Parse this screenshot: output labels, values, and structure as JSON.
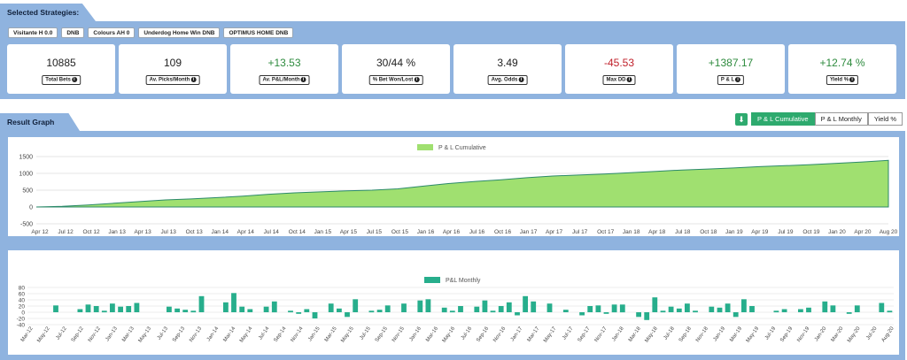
{
  "header": {
    "selected_title": "Selected Strategies:",
    "result_title": "Result Graph"
  },
  "strategies": [
    "Visitante H 0.0",
    "DNB",
    "Colours AH 0",
    "Underdog Home Win DNB",
    "OPTIMUS HOME DNB"
  ],
  "stats": [
    {
      "value": "10885",
      "label": "Total Bets",
      "tone": "neutral"
    },
    {
      "value": "109",
      "label": "Av. Picks/Month",
      "tone": "neutral"
    },
    {
      "value": "+13.53",
      "label": "Av. P&L/Month",
      "tone": "pos"
    },
    {
      "value": "30/44 %",
      "label": "% Bet Won/Lost",
      "tone": "neutral"
    },
    {
      "value": "3.49",
      "label": "Avg. Odds",
      "tone": "neutral"
    },
    {
      "value": "-45.53",
      "label": "Max DD",
      "tone": "neg"
    },
    {
      "value": "+1387.17",
      "label": "P & L",
      "tone": "pos"
    },
    {
      "value": "+12.74 %",
      "label": "Yield %",
      "tone": "pos"
    }
  ],
  "toolbar": {
    "download_icon": "download-icon",
    "tabs": [
      {
        "label": "P & L Cumulative",
        "active": true
      },
      {
        "label": "P & L Monthly",
        "active": false
      },
      {
        "label": "Yield %",
        "active": false
      }
    ]
  },
  "colors": {
    "accent": "#2eaa6e",
    "panel": "#8fb3df",
    "area_fill": "#a0e070",
    "bar": "#27ae8c"
  },
  "chart_data": [
    {
      "type": "area",
      "legend": "P & L Cumulative",
      "legend_position": "top-center",
      "grid": true,
      "ylim": [
        -500,
        1500
      ],
      "yticks": [
        "1500",
        "1000",
        "500",
        "0",
        "-500"
      ],
      "xtick_labels": [
        "Apr 12",
        "Jul 12",
        "Oct 12",
        "Jan 13",
        "Apr 13",
        "Jul 13",
        "Oct 13",
        "Jan 14",
        "Apr 14",
        "Jul 14",
        "Oct 14",
        "Jan 15",
        "Apr 15",
        "Jul 15",
        "Oct 15",
        "Jan 16",
        "Apr 16",
        "Jul 16",
        "Oct 16",
        "Jan 17",
        "Apr 17",
        "Jul 17",
        "Oct 17",
        "Jan 18",
        "Apr 18",
        "Jul 18",
        "Oct 18",
        "Jan 19",
        "Apr 19",
        "Jul 19",
        "Oct 19",
        "Jan 20",
        "Apr 20",
        "Aug 20"
      ],
      "values": [
        0,
        20,
        60,
        110,
        160,
        210,
        240,
        280,
        320,
        380,
        420,
        450,
        480,
        500,
        540,
        620,
        700,
        760,
        810,
        870,
        920,
        950,
        980,
        1020,
        1060,
        1100,
        1130,
        1160,
        1200,
        1230,
        1260,
        1300,
        1340,
        1387
      ]
    },
    {
      "type": "bar",
      "legend": "P&L Monthly",
      "legend_position": "top-center",
      "grid": true,
      "ylim": [
        -40,
        80
      ],
      "yticks": [
        "80",
        "60",
        "40",
        "20",
        "0",
        "-20",
        "-40"
      ],
      "xtick_labels": [
        "Mar-12",
        "May-12",
        "Jul-12",
        "Sep-12",
        "Nov-12",
        "Jan-13",
        "Mar-13",
        "May-13",
        "Jul-13",
        "Sep-13",
        "Nov-13",
        "Jan-14",
        "Mar-14",
        "May-14",
        "Jul-14",
        "Sep-14",
        "Nov-14",
        "Jan-15",
        "Mar-15",
        "May-15",
        "Jul-15",
        "Sep-15",
        "Nov-15",
        "Jan-16",
        "Mar-16",
        "May-16",
        "Jul-16",
        "Sep-16",
        "Nov-16",
        "Jan-17",
        "Mar-17",
        "May-17",
        "Jul-17",
        "Sep-17",
        "Nov-17",
        "Jan-18",
        "Mar-18",
        "May-18",
        "Jul-18",
        "Sep-18",
        "Nov-18",
        "Jan-19",
        "Mar-19",
        "May-19",
        "Jul-19",
        "Sep-19",
        "Nov-19",
        "Jan-20",
        "Mar-20",
        "May-20",
        "Jul-20",
        "Aug-20"
      ],
      "values": [
        0,
        0,
        0,
        22,
        0,
        0,
        10,
        25,
        20,
        5,
        28,
        18,
        20,
        30,
        0,
        0,
        0,
        18,
        12,
        8,
        5,
        52,
        0,
        0,
        32,
        62,
        18,
        10,
        0,
        18,
        35,
        0,
        5,
        -5,
        10,
        -20,
        0,
        28,
        12,
        -15,
        42,
        0,
        5,
        8,
        22,
        0,
        28,
        0,
        38,
        42,
        0,
        15,
        5,
        20,
        0,
        18,
        38,
        5,
        20,
        32,
        -10,
        52,
        35,
        0,
        28,
        0,
        8,
        0,
        -10,
        20,
        22,
        -5,
        25,
        25,
        0,
        -15,
        -25,
        48,
        5,
        18,
        12,
        28,
        5,
        0,
        18,
        15,
        28,
        -15,
        42,
        20,
        0,
        0,
        5,
        10,
        0,
        10,
        15,
        0,
        35,
        22,
        0,
        -5,
        22,
        0,
        0,
        30,
        5
      ]
    }
  ]
}
